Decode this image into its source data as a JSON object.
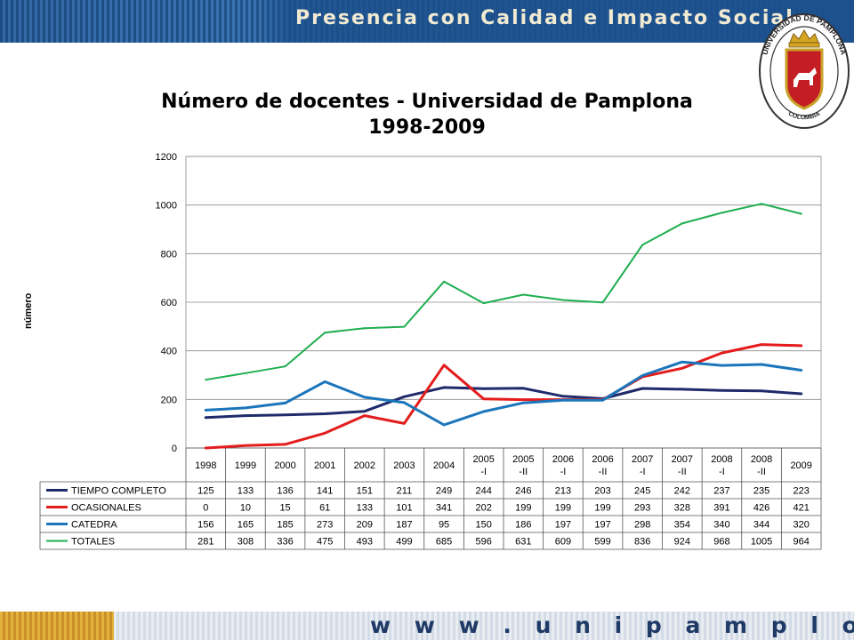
{
  "header": {
    "slogan": "Presencia con Calidad e Impacto Social"
  },
  "logo": {
    "ring_text_top": "UNIVERSIDAD DE PAMPLONA",
    "ring_text_bottom": "COLOMBIA"
  },
  "footer": {
    "url": "w w w . u n i p a m p l o n a . e d u . c o"
  },
  "colors": {
    "banner_blue": "#2a5f9e",
    "footer_gold": "#d9a235",
    "tiempo": "#1f2a6b",
    "ocasionales": "#e31d1d",
    "catedra": "#1b75bb",
    "totales": "#1fae4f"
  },
  "chart_data": {
    "type": "line",
    "title_line1": "Número de docentes - Universidad de Pamplona",
    "title_line2": "1998-2009",
    "xlabel": "",
    "ylabel": "número",
    "ylim": [
      0,
      1200
    ],
    "yticks": [
      "0",
      "200",
      "400",
      "600",
      "800",
      "1000",
      "1200"
    ],
    "grid": true,
    "legend": "data-table",
    "categories": [
      [
        "1998"
      ],
      [
        "1999"
      ],
      [
        "2000"
      ],
      [
        "2001"
      ],
      [
        "2002"
      ],
      [
        "2003"
      ],
      [
        "2004"
      ],
      [
        "2005",
        "-I"
      ],
      [
        "2005",
        "-II"
      ],
      [
        "2006",
        "-I"
      ],
      [
        "2006",
        "-II"
      ],
      [
        "2007",
        "-I"
      ],
      [
        "2007",
        "-II"
      ],
      [
        "2008",
        "-I"
      ],
      [
        "2008",
        "-II"
      ],
      [
        "2009"
      ]
    ],
    "series": [
      {
        "name": "TIEMPO COMPLETO",
        "color": "#1f2a6b",
        "width": 3,
        "values": [
          125,
          133,
          136,
          141,
          151,
          211,
          249,
          244,
          246,
          213,
          203,
          245,
          242,
          237,
          235,
          223
        ]
      },
      {
        "name": "OCASIONALES",
        "color": "#e31d1d",
        "width": 3,
        "values": [
          0,
          10,
          15,
          61,
          133,
          101,
          341,
          202,
          199,
          199,
          199,
          293,
          328,
          391,
          426,
          421
        ]
      },
      {
        "name": "CATEDRA",
        "color": "#1b75bb",
        "width": 3,
        "values": [
          156,
          165,
          185,
          273,
          209,
          187,
          95,
          150,
          186,
          197,
          197,
          298,
          354,
          340,
          344,
          320
        ]
      },
      {
        "name": "TOTALES",
        "color": "#1fae4f",
        "width": 2,
        "values": [
          281,
          308,
          336,
          475,
          493,
          499,
          685,
          596,
          631,
          609,
          599,
          836,
          924,
          968,
          1005,
          964
        ]
      }
    ]
  }
}
